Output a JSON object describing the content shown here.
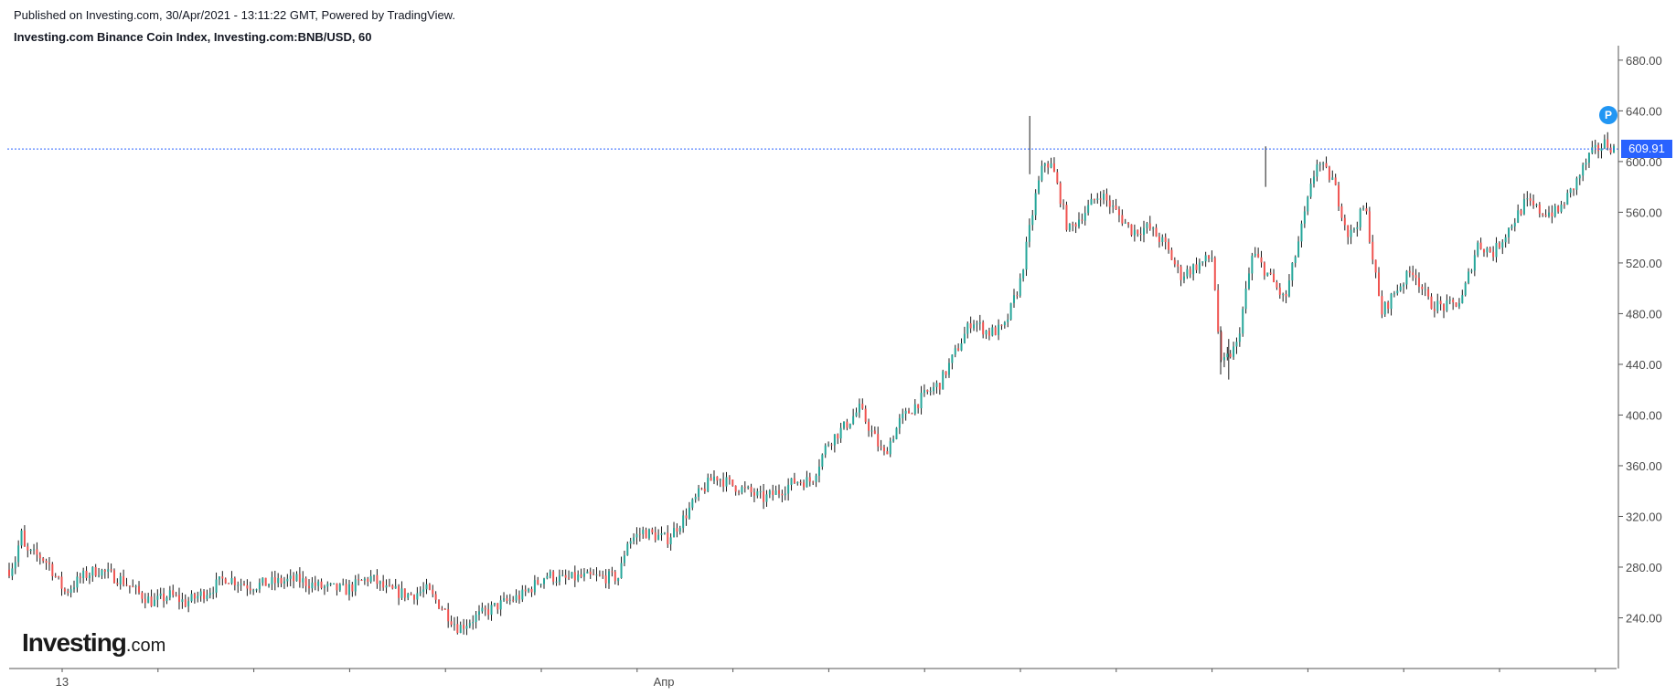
{
  "header": {
    "published": "Published on Investing.com, 30/Apr/2021 - 13:11:22 GMT, Powered by TradingView.",
    "title": "Investing.com Binance Coin Index, Investing.com:BNB/USD, 60"
  },
  "logo": {
    "brand": "Investing",
    "suffix": ".com"
  },
  "price_marker": {
    "label": "P"
  },
  "chart_data": {
    "type": "candlestick",
    "ylim": [
      200,
      690
    ],
    "y_ticks": [
      240,
      280,
      320,
      360,
      400,
      440,
      480,
      520,
      560,
      600,
      640,
      680
    ],
    "y_tick_labels": [
      "240.00",
      "280.00",
      "320.00",
      "360.00",
      "400.00",
      "440.00",
      "480.00",
      "520.00",
      "560.00",
      "600.00",
      "640.00",
      "680.00"
    ],
    "x_labels": [
      "13",
      "Апр"
    ],
    "x_label_positions": [
      0.033,
      0.408
    ],
    "last_price": 609.91,
    "last_price_label": "609.91",
    "grid": false,
    "colors": {
      "up": "#26a69a",
      "down": "#ef5350",
      "wick": "#1a1a1a",
      "last_line": "#2962ff",
      "axis": "#555555"
    },
    "close_path": [
      [
        0.0,
        278
      ],
      [
        0.005,
        288
      ],
      [
        0.007,
        310
      ],
      [
        0.01,
        292
      ],
      [
        0.02,
        288
      ],
      [
        0.025,
        282
      ],
      [
        0.03,
        270
      ],
      [
        0.035,
        260
      ],
      [
        0.045,
        272
      ],
      [
        0.055,
        278
      ],
      [
        0.07,
        270
      ],
      [
        0.08,
        260
      ],
      [
        0.09,
        252
      ],
      [
        0.1,
        258
      ],
      [
        0.11,
        252
      ],
      [
        0.125,
        262
      ],
      [
        0.135,
        272
      ],
      [
        0.15,
        265
      ],
      [
        0.165,
        268
      ],
      [
        0.18,
        270
      ],
      [
        0.195,
        264
      ],
      [
        0.21,
        262
      ],
      [
        0.225,
        272
      ],
      [
        0.235,
        262
      ],
      [
        0.25,
        258
      ],
      [
        0.26,
        262
      ],
      [
        0.27,
        248
      ],
      [
        0.28,
        232
      ],
      [
        0.29,
        240
      ],
      [
        0.305,
        250
      ],
      [
        0.32,
        258
      ],
      [
        0.335,
        274
      ],
      [
        0.345,
        270
      ],
      [
        0.355,
        272
      ],
      [
        0.38,
        272
      ],
      [
        0.385,
        300
      ],
      [
        0.395,
        308
      ],
      [
        0.41,
        302
      ],
      [
        0.42,
        318
      ],
      [
        0.43,
        338
      ],
      [
        0.44,
        352
      ],
      [
        0.45,
        345
      ],
      [
        0.46,
        340
      ],
      [
        0.47,
        334
      ],
      [
        0.48,
        340
      ],
      [
        0.49,
        348
      ],
      [
        0.5,
        348
      ],
      [
        0.51,
        378
      ],
      [
        0.52,
        390
      ],
      [
        0.53,
        405
      ],
      [
        0.545,
        368
      ],
      [
        0.555,
        395
      ],
      [
        0.57,
        415
      ],
      [
        0.58,
        425
      ],
      [
        0.59,
        450
      ],
      [
        0.6,
        475
      ],
      [
        0.61,
        465
      ],
      [
        0.62,
        468
      ],
      [
        0.63,
        505
      ],
      [
        0.64,
        575
      ],
      [
        0.645,
        600
      ],
      [
        0.65,
        596
      ],
      [
        0.655,
        572
      ],
      [
        0.66,
        545
      ],
      [
        0.67,
        560
      ],
      [
        0.68,
        575
      ],
      [
        0.69,
        560
      ],
      [
        0.7,
        545
      ],
      [
        0.71,
        548
      ],
      [
        0.72,
        535
      ],
      [
        0.73,
        510
      ],
      [
        0.74,
        518
      ],
      [
        0.75,
        525
      ],
      [
        0.755,
        438
      ],
      [
        0.765,
        455
      ],
      [
        0.775,
        528
      ],
      [
        0.785,
        510
      ],
      [
        0.795,
        490
      ],
      [
        0.805,
        545
      ],
      [
        0.815,
        600
      ],
      [
        0.825,
        585
      ],
      [
        0.835,
        540
      ],
      [
        0.845,
        565
      ],
      [
        0.855,
        480
      ],
      [
        0.865,
        500
      ],
      [
        0.875,
        515
      ],
      [
        0.885,
        488
      ],
      [
        0.895,
        485
      ],
      [
        0.905,
        490
      ],
      [
        0.915,
        535
      ],
      [
        0.925,
        528
      ],
      [
        0.935,
        548
      ],
      [
        0.945,
        568
      ],
      [
        0.955,
        560
      ],
      [
        0.965,
        560
      ],
      [
        0.975,
        580
      ],
      [
        0.985,
        605
      ],
      [
        0.995,
        615
      ],
      [
        1.0,
        610
      ]
    ]
  }
}
